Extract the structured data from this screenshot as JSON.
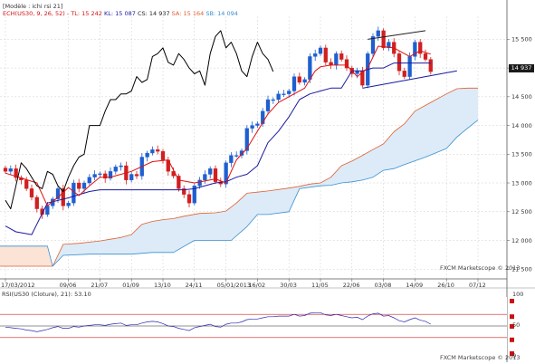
{
  "header": {
    "model_label": "[Modèle : ichi rsi 21]",
    "legend": [
      {
        "text": "ECH(US30, 9, 26, 52) -",
        "color": "#d01010"
      },
      {
        "text": "TL: 15 242",
        "color": "#d01010"
      },
      {
        "text": "KL: 15 087",
        "color": "#1a1aa0"
      },
      {
        "text": "CS: 14 937",
        "color": "#222222"
      },
      {
        "text": "SA: 15 164",
        "color": "#e06030"
      },
      {
        "text": "SB: 14 094",
        "color": "#3a8fd0"
      }
    ]
  },
  "watermarks": {
    "main": "FXCM Marketscope © 2013",
    "rsi": "FXCM Marketscope © 2013"
  },
  "rsi_panel": {
    "legend": "RSI(US30 (Cloture), 21): 53.10",
    "right_labels": [
      "100",
      "50",
      "0"
    ]
  },
  "current_price_label": "14 937",
  "colors": {
    "up_candle": "#1f5fd0",
    "down_candle": "#d02020",
    "tenkan": "#e01010",
    "kijun": "#1a1aa0",
    "chikou": "#000000",
    "span_a": "#e06030",
    "span_b": "#3a8fd0",
    "cloud_bull": "#dcebf7",
    "cloud_bear": "#fbe3d6",
    "trend_line": "#1a1aa0"
  },
  "chart_data": {
    "type": "candlestick",
    "indicators": [
      "Ichimoku",
      "RSI"
    ],
    "y_axis": {
      "ticks": [
        11500,
        12000,
        12500,
        13000,
        13500,
        14000,
        14500,
        15000,
        15500
      ],
      "tick_labels": [
        "11 500",
        "12 000",
        "12 500",
        "13 000",
        "13 500",
        "14 000",
        "14 500",
        "15 000",
        "15 500"
      ],
      "range": [
        11330,
        15900
      ]
    },
    "x_axis": {
      "tick_labels": [
        "17/03/2012",
        "09/06",
        "21/07",
        "01/09",
        "13/10",
        "24/11",
        "05/01/2013",
        "16/02",
        "30/03",
        "11/05",
        "22/06",
        "03/08",
        "14/09",
        "26/10",
        "07/12"
      ],
      "tick_week_index": [
        0,
        12,
        18,
        24,
        30,
        36,
        42,
        48,
        54,
        60,
        66,
        72,
        78,
        84,
        90
      ]
    },
    "weeks_total": 94,
    "weekly_closes": [
      13200,
      13250,
      13090,
      13050,
      12900,
      12750,
      12550,
      12450,
      12600,
      12720,
      12900,
      12600,
      12650,
      13000,
      12900,
      13000,
      13100,
      13150,
      13160,
      13080,
      13200,
      13280,
      13300,
      13050,
      13150,
      13120,
      13450,
      13520,
      13580,
      13550,
      13400,
      13200,
      13120,
      12900,
      12800,
      12650,
      12950,
      13050,
      13150,
      13250,
      13020,
      12980,
      13350,
      13480,
      13480,
      13560,
      13950,
      14000,
      14030,
      14250,
      14450,
      14450,
      14550,
      14550,
      14600,
      14850,
      14750,
      14800,
      15200,
      15250,
      15350,
      15100,
      15050,
      15250,
      15150,
      15000,
      14900,
      14950,
      14700,
      15250,
      15550,
      15650,
      15350,
      15450,
      15250,
      14950,
      14850,
      15200,
      15450,
      15250,
      15150,
      14937
    ],
    "tenkan_line": [
      [
        0,
        13170
      ],
      [
        6,
        13000
      ],
      [
        8,
        12600
      ],
      [
        10,
        12750
      ],
      [
        12,
        12920
      ],
      [
        14,
        12780
      ],
      [
        16,
        12950
      ],
      [
        18,
        13100
      ],
      [
        20,
        13100
      ],
      [
        24,
        13200
      ],
      [
        28,
        13370
      ],
      [
        31,
        13400
      ],
      [
        33,
        13050
      ],
      [
        36,
        13000
      ],
      [
        40,
        13070
      ],
      [
        42,
        13000
      ],
      [
        44,
        13400
      ],
      [
        46,
        13600
      ],
      [
        48,
        13900
      ],
      [
        50,
        14200
      ],
      [
        52,
        14400
      ],
      [
        54,
        14500
      ],
      [
        57,
        14650
      ],
      [
        59,
        14950
      ],
      [
        60,
        15020
      ],
      [
        62,
        15050
      ],
      [
        65,
        15050
      ],
      [
        67,
        14850
      ],
      [
        69,
        15000
      ],
      [
        71,
        15380
      ],
      [
        74,
        15350
      ],
      [
        77,
        15200
      ],
      [
        79,
        15300
      ],
      [
        81,
        15242
      ]
    ],
    "kijun_line": [
      [
        0,
        12250
      ],
      [
        2,
        12150
      ],
      [
        5,
        12100
      ],
      [
        8,
        12650
      ],
      [
        12,
        12740
      ],
      [
        16,
        12850
      ],
      [
        18,
        12880
      ],
      [
        22,
        12880
      ],
      [
        26,
        12880
      ],
      [
        30,
        12880
      ],
      [
        34,
        12880
      ],
      [
        36,
        12900
      ],
      [
        40,
        13000
      ],
      [
        42,
        13020
      ],
      [
        44,
        13100
      ],
      [
        46,
        13150
      ],
      [
        48,
        13300
      ],
      [
        50,
        13700
      ],
      [
        52,
        13900
      ],
      [
        54,
        14150
      ],
      [
        56,
        14450
      ],
      [
        58,
        14550
      ],
      [
        60,
        14600
      ],
      [
        62,
        14650
      ],
      [
        64,
        14650
      ],
      [
        66,
        14950
      ],
      [
        68,
        14950
      ],
      [
        70,
        15000
      ],
      [
        72,
        15000
      ],
      [
        74,
        15087
      ],
      [
        81,
        15087
      ]
    ],
    "chikou_line": [
      [
        0,
        12700
      ],
      [
        1,
        12550
      ],
      [
        2,
        12950
      ],
      [
        3,
        13350
      ],
      [
        4,
        13250
      ],
      [
        5,
        13100
      ],
      [
        6,
        12950
      ],
      [
        7,
        12900
      ],
      [
        8,
        13200
      ],
      [
        9,
        13150
      ],
      [
        10,
        12950
      ],
      [
        11,
        12850
      ],
      [
        12,
        13100
      ],
      [
        13,
        13300
      ],
      [
        14,
        13450
      ],
      [
        15,
        13500
      ],
      [
        16,
        14000
      ],
      [
        17,
        14000
      ],
      [
        18,
        14000
      ],
      [
        19,
        14250
      ],
      [
        20,
        14450
      ],
      [
        21,
        14450
      ],
      [
        22,
        14550
      ],
      [
        23,
        14550
      ],
      [
        24,
        14600
      ],
      [
        25,
        14850
      ],
      [
        26,
        14750
      ],
      [
        27,
        14800
      ],
      [
        28,
        15200
      ],
      [
        29,
        15250
      ],
      [
        30,
        15350
      ],
      [
        31,
        15100
      ],
      [
        32,
        15050
      ],
      [
        33,
        15250
      ],
      [
        34,
        15150
      ],
      [
        35,
        15000
      ],
      [
        36,
        14900
      ],
      [
        37,
        14950
      ],
      [
        38,
        14700
      ],
      [
        39,
        15250
      ],
      [
        40,
        15550
      ],
      [
        41,
        15650
      ],
      [
        42,
        15350
      ],
      [
        43,
        15450
      ],
      [
        44,
        15250
      ],
      [
        45,
        14950
      ],
      [
        46,
        14850
      ],
      [
        47,
        15200
      ],
      [
        48,
        15450
      ],
      [
        49,
        15250
      ],
      [
        50,
        15150
      ],
      [
        51,
        14937
      ]
    ],
    "span_a_line": [
      [
        -2,
        11550
      ],
      [
        4,
        11550
      ],
      [
        9,
        11550
      ],
      [
        11,
        11930
      ],
      [
        14,
        11950
      ],
      [
        18,
        11990
      ],
      [
        20,
        12020
      ],
      [
        22,
        12050
      ],
      [
        24,
        12100
      ],
      [
        26,
        12280
      ],
      [
        28,
        12330
      ],
      [
        30,
        12360
      ],
      [
        32,
        12380
      ],
      [
        34,
        12420
      ],
      [
        37,
        12470
      ],
      [
        40,
        12480
      ],
      [
        42,
        12510
      ],
      [
        44,
        12650
      ],
      [
        46,
        12820
      ],
      [
        48,
        12840
      ],
      [
        50,
        12860
      ],
      [
        54,
        12910
      ],
      [
        56,
        12940
      ],
      [
        58,
        12980
      ],
      [
        60,
        13000
      ],
      [
        62,
        13100
      ],
      [
        64,
        13300
      ],
      [
        66,
        13380
      ],
      [
        68,
        13480
      ],
      [
        70,
        13580
      ],
      [
        72,
        13680
      ],
      [
        74,
        13890
      ],
      [
        76,
        14030
      ],
      [
        78,
        14250
      ],
      [
        80,
        14350
      ],
      [
        82,
        14450
      ],
      [
        84,
        14550
      ],
      [
        86,
        14640
      ],
      [
        88,
        14650
      ],
      [
        90,
        14650
      ]
    ],
    "span_b_line": [
      [
        -2,
        11900
      ],
      [
        4,
        11900
      ],
      [
        8,
        11900
      ],
      [
        9,
        11550
      ],
      [
        11,
        11740
      ],
      [
        16,
        11760
      ],
      [
        24,
        11760
      ],
      [
        28,
        11790
      ],
      [
        32,
        11790
      ],
      [
        36,
        12000
      ],
      [
        38,
        12000
      ],
      [
        41,
        12000
      ],
      [
        43,
        12000
      ],
      [
        46,
        12240
      ],
      [
        48,
        12450
      ],
      [
        50,
        12450
      ],
      [
        54,
        12500
      ],
      [
        56,
        12900
      ],
      [
        60,
        12950
      ],
      [
        62,
        12960
      ],
      [
        64,
        13000
      ],
      [
        66,
        13020
      ],
      [
        68,
        13050
      ],
      [
        70,
        13100
      ],
      [
        72,
        13220
      ],
      [
        74,
        13250
      ],
      [
        76,
        13320
      ],
      [
        80,
        13450
      ],
      [
        84,
        13600
      ],
      [
        86,
        13800
      ],
      [
        88,
        13950
      ],
      [
        90,
        14094
      ]
    ],
    "trend_lines": [
      {
        "from": [
          68,
          14650
        ],
        "to": [
          86,
          14950
        ]
      },
      {
        "from": [
          69,
          15500
        ],
        "to": [
          80,
          15650
        ]
      }
    ],
    "rsi": {
      "range": [
        0,
        100
      ],
      "levels": [
        30,
        50,
        70
      ],
      "last_value": 53.1,
      "values": [
        48,
        47,
        46,
        45,
        43,
        42,
        40,
        42,
        44,
        47,
        49,
        46,
        46,
        49,
        48,
        50,
        51,
        52,
        52,
        51,
        53,
        54,
        55,
        51,
        52,
        52,
        55,
        57,
        58,
        57,
        54,
        50,
        49,
        46,
        44,
        42,
        47,
        49,
        51,
        53,
        49,
        48,
        53,
        55,
        55,
        57,
        61,
        62,
        62,
        64,
        66,
        66,
        67,
        67,
        67,
        70,
        67,
        68,
        72,
        73,
        73,
        69,
        68,
        70,
        68,
        66,
        64,
        65,
        61,
        67,
        71,
        72,
        67,
        68,
        64,
        59,
        57,
        61,
        64,
        60,
        58,
        53.1
      ]
    }
  }
}
